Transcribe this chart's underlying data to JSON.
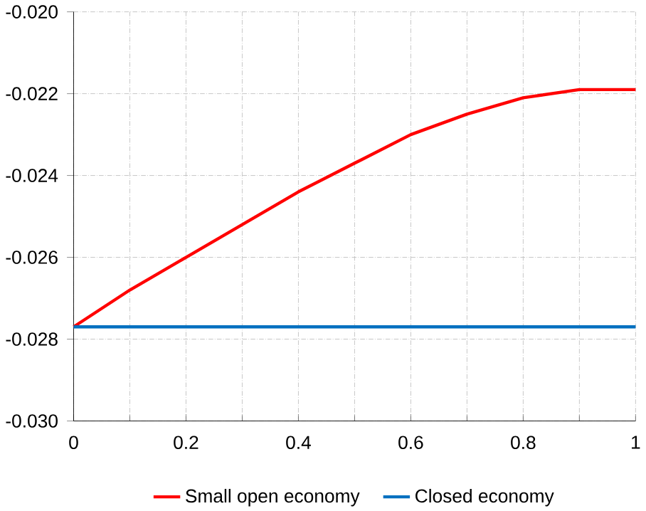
{
  "chart_data": {
    "type": "line",
    "x": [
      0,
      0.1,
      0.2,
      0.3,
      0.4,
      0.5,
      0.6,
      0.7,
      0.8,
      0.9,
      1
    ],
    "series": [
      {
        "name": "Small open economy",
        "color": "#ff0000",
        "values": [
          -0.0277,
          -0.0268,
          -0.026,
          -0.0252,
          -0.0244,
          -0.0237,
          -0.023,
          -0.0225,
          -0.0221,
          -0.0219,
          -0.0219
        ]
      },
      {
        "name": "Closed economy",
        "color": "#0070c0",
        "values": [
          -0.0277,
          -0.0277,
          -0.0277,
          -0.0277,
          -0.0277,
          -0.0277,
          -0.0277,
          -0.0277,
          -0.0277,
          -0.0277,
          -0.0277
        ]
      }
    ],
    "xlim": [
      0,
      1
    ],
    "ylim": [
      -0.03,
      -0.02
    ],
    "xticks": [
      0,
      0.2,
      0.4,
      0.6,
      0.8,
      1
    ],
    "yticks": [
      {
        "value": -0.03,
        "label": "-0.030"
      },
      {
        "value": -0.028,
        "label": "-0.028"
      },
      {
        "value": -0.026,
        "label": "-0.026"
      },
      {
        "value": -0.024,
        "label": "-0.024"
      },
      {
        "value": -0.022,
        "label": "-0.022"
      },
      {
        "value": -0.02,
        "label": "-0.020"
      }
    ],
    "grid": true,
    "legend": "bottom",
    "marker": "none",
    "line_style": "solid"
  }
}
